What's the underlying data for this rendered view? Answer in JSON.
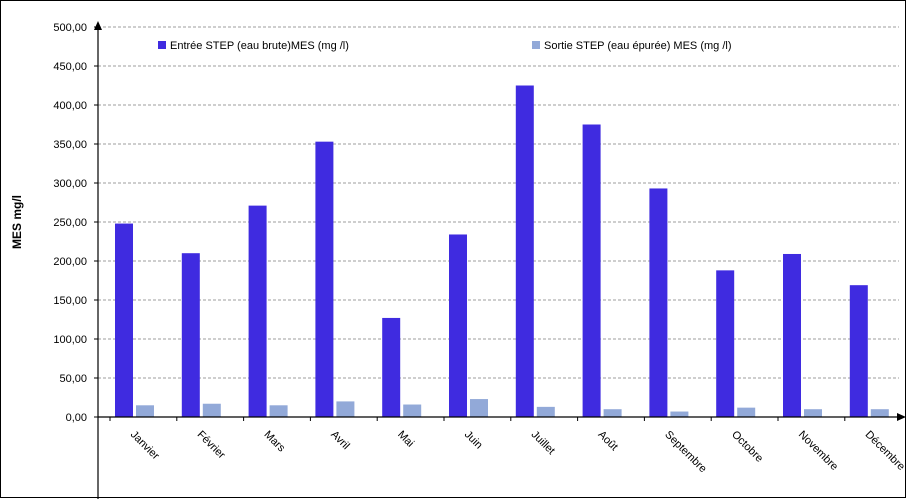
{
  "chart_data": {
    "type": "bar",
    "categories": [
      "Janvier",
      "Février",
      "Mars",
      "Avril",
      "Mai",
      "Juin",
      "Juillet",
      "Août",
      "Septembre",
      "Octobre",
      "Novembre",
      "Décembre"
    ],
    "series": [
      {
        "name": "Entrée STEP (eau brute)MES (mg /l)",
        "color": "#3f2be0",
        "values": [
          248,
          210,
          271,
          353,
          127,
          234,
          425,
          375,
          293,
          188,
          209,
          169
        ]
      },
      {
        "name": "Sortie STEP (eau épurée) MES  (mg /l)",
        "color": "#92a9d8",
        "values": [
          15,
          17,
          15,
          20,
          16,
          23,
          13,
          10,
          7,
          12,
          10,
          10
        ]
      }
    ],
    "title": "",
    "xlabel": "",
    "ylabel": "MES  mg/l",
    "ylim": [
      0,
      500
    ],
    "yticks": [
      "0,00",
      "50,00",
      "100,00",
      "150,00",
      "200,00",
      "250,00",
      "300,00",
      "350,00",
      "400,00",
      "450,00",
      "500,00"
    ],
    "grid": true,
    "legend_position": "top"
  }
}
